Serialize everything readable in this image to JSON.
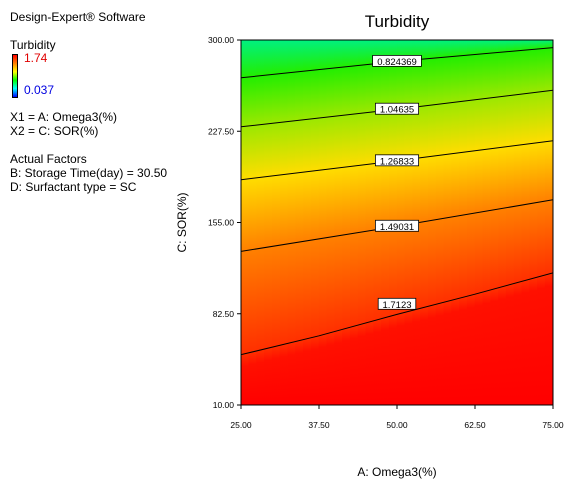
{
  "software_label": "Design-Expert® Software",
  "legend": {
    "response_name": "Turbidity",
    "high_value": "1.74",
    "low_value": "0.037",
    "high_color": "#e00000",
    "low_color": "#0000e0"
  },
  "factors": {
    "x1": "X1 = A: Omega3(%)",
    "x2": "X2 = C: SOR(%)"
  },
  "actual_factors": {
    "heading": "Actual Factors",
    "items": [
      "B: Storage Time(day) = 30.50",
      "D: Surfactant type = SC"
    ]
  },
  "chart_data": {
    "type": "contour",
    "title": "Turbidity",
    "xlabel": "A: Omega3(%)",
    "ylabel": "C: SOR(%)",
    "xlim": [
      25,
      75
    ],
    "ylim": [
      10,
      300
    ],
    "x_ticks": [
      "25.00",
      "37.50",
      "50.00",
      "62.50",
      "75.00"
    ],
    "y_ticks": [
      "10.00",
      "82.50",
      "155.00",
      "227.50",
      "300.00"
    ],
    "grid": false,
    "colormap": [
      "#ff0000",
      "#ff8000",
      "#ffff00",
      "#80ff00",
      "#00ff00",
      "#00ff80"
    ],
    "contours": [
      {
        "label": "0.824369",
        "points": [
          [
            25,
            270
          ],
          [
            50,
            283
          ],
          [
            75,
            294
          ]
        ],
        "label_at": [
          50,
          283
        ]
      },
      {
        "label": "1.04635",
        "points": [
          [
            25,
            231
          ],
          [
            50,
            245
          ],
          [
            75,
            260
          ]
        ],
        "label_at": [
          50,
          245
        ]
      },
      {
        "label": "1.26833",
        "points": [
          [
            25,
            189
          ],
          [
            50,
            204
          ],
          [
            75,
            220
          ]
        ],
        "label_at": [
          50,
          204
        ]
      },
      {
        "label": "1.49031",
        "points": [
          [
            25,
            132
          ],
          [
            50,
            152
          ],
          [
            75,
            173
          ]
        ],
        "label_at": [
          50,
          152
        ]
      },
      {
        "label": "1.7123",
        "points": [
          [
            25,
            50
          ],
          [
            37.5,
            65
          ],
          [
            50,
            82
          ],
          [
            62.5,
            98
          ],
          [
            75,
            115
          ]
        ],
        "label_at": [
          50,
          90
        ]
      }
    ]
  }
}
